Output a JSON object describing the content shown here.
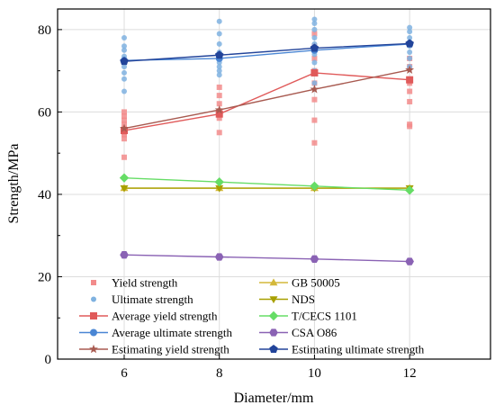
{
  "chart_data": {
    "type": "scatter",
    "xlabel": "Diameter/mm",
    "ylabel": "Strength/MPa",
    "xlim": [
      4.6,
      13.7
    ],
    "ylim": [
      0,
      85
    ],
    "xticks": [
      6,
      8,
      10,
      12
    ],
    "yticks": [
      0,
      20,
      40,
      60,
      80
    ],
    "grid": true,
    "legend_position": "lower-center, two columns",
    "scatter_series": [
      {
        "name": "Yield strength",
        "marker": "square",
        "color": "#f28b8b",
        "points": [
          [
            6,
            49
          ],
          [
            6,
            53.5
          ],
          [
            6,
            54.5
          ],
          [
            6,
            55
          ],
          [
            6,
            56
          ],
          [
            6,
            57
          ],
          [
            6,
            58
          ],
          [
            6,
            59
          ],
          [
            6,
            60
          ],
          [
            8,
            55
          ],
          [
            8,
            58.5
          ],
          [
            8,
            60
          ],
          [
            8,
            62
          ],
          [
            8,
            64
          ],
          [
            8,
            66
          ],
          [
            10,
            52.5
          ],
          [
            10,
            58
          ],
          [
            10,
            63
          ],
          [
            10,
            67
          ],
          [
            10,
            70
          ],
          [
            10,
            73
          ],
          [
            10,
            76
          ],
          [
            10,
            79
          ],
          [
            12,
            56.5
          ],
          [
            12,
            57
          ],
          [
            12,
            62.5
          ],
          [
            12,
            65
          ],
          [
            12,
            67
          ],
          [
            12,
            68
          ],
          [
            12,
            71
          ],
          [
            12,
            73
          ]
        ]
      },
      {
        "name": "Ultimate strength",
        "marker": "circle",
        "color": "#7fb2e0",
        "points": [
          [
            6,
            65
          ],
          [
            6,
            68
          ],
          [
            6,
            69.5
          ],
          [
            6,
            71
          ],
          [
            6,
            72.5
          ],
          [
            6,
            73.5
          ],
          [
            6,
            75
          ],
          [
            6,
            76
          ],
          [
            6,
            78
          ],
          [
            8,
            69
          ],
          [
            8,
            70
          ],
          [
            8,
            71
          ],
          [
            8,
            72
          ],
          [
            8,
            73.5
          ],
          [
            8,
            74.5
          ],
          [
            8,
            76.5
          ],
          [
            8,
            79
          ],
          [
            8,
            82
          ],
          [
            10,
            67
          ],
          [
            10,
            70
          ],
          [
            10,
            72
          ],
          [
            10,
            74
          ],
          [
            10,
            75
          ],
          [
            10,
            76.5
          ],
          [
            10,
            78
          ],
          [
            10,
            80
          ],
          [
            10,
            81.5
          ],
          [
            10,
            82.5
          ],
          [
            12,
            71
          ],
          [
            12,
            73
          ],
          [
            12,
            74.5
          ],
          [
            12,
            76
          ],
          [
            12,
            77
          ],
          [
            12,
            78
          ],
          [
            12,
            79.5
          ],
          [
            12,
            80.5
          ]
        ]
      }
    ],
    "line_series": [
      {
        "name": "Average yield strength",
        "marker": "square",
        "color": "#e05a5a",
        "x": [
          6,
          8,
          10,
          12
        ],
        "y": [
          55.5,
          59.5,
          69.5,
          67.8
        ]
      },
      {
        "name": "Average ultimate strength",
        "marker": "circle",
        "color": "#4a86d4",
        "x": [
          6,
          8,
          10,
          12
        ],
        "y": [
          72.5,
          73,
          75,
          76.5
        ]
      },
      {
        "name": "Estimating yield strength",
        "marker": "star",
        "color": "#a85a50",
        "x": [
          6,
          8,
          10,
          12
        ],
        "y": [
          56,
          60.5,
          65.5,
          70.2
        ]
      },
      {
        "name": "GB 50005",
        "marker": "triangle-up",
        "color": "#d4b83a",
        "x": [
          6,
          8,
          10,
          12
        ],
        "y": [
          41.5,
          41.5,
          41.5,
          41.5
        ]
      },
      {
        "name": "NDS",
        "marker": "triangle-down",
        "color": "#a8a000",
        "x": [
          6,
          8,
          10,
          12
        ],
        "y": [
          41.5,
          41.5,
          41.5,
          41.5
        ]
      },
      {
        "name": "T/CECS 1101",
        "marker": "diamond",
        "color": "#66dd66",
        "x": [
          6,
          8,
          10,
          12
        ],
        "y": [
          44,
          43,
          42,
          41
        ]
      },
      {
        "name": "CSA O86",
        "marker": "hexagon",
        "color": "#8a62b4",
        "x": [
          6,
          8,
          10,
          12
        ],
        "y": [
          25.3,
          24.8,
          24.3,
          23.7
        ]
      },
      {
        "name": "Estimating ultimate strength",
        "marker": "pentagon",
        "color": "#22449a",
        "x": [
          6,
          8,
          10,
          12
        ],
        "y": [
          72.3,
          73.8,
          75.5,
          76.6
        ]
      }
    ],
    "legend": [
      [
        "Yield strength",
        "GB 50005"
      ],
      [
        "Ultimate strength",
        "NDS"
      ],
      [
        "Average yield strength",
        "T/CECS 1101"
      ],
      [
        "Average ultimate strength",
        "CSA O86"
      ],
      [
        "Estimating yield strength",
        "Estimating ultimate strength"
      ]
    ]
  }
}
